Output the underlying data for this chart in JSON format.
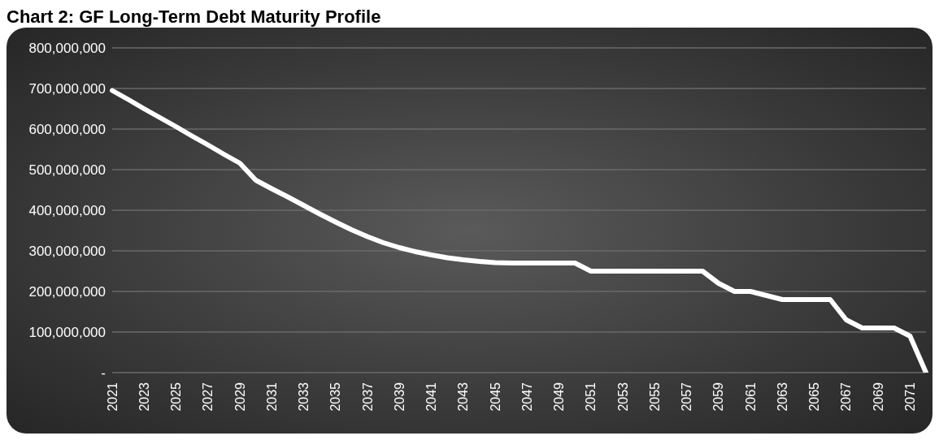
{
  "chart_data": {
    "type": "line",
    "title": "Chart 2: GF Long-Term Debt Maturity Profile",
    "categories": [
      "2021",
      null,
      "2023",
      null,
      "2025",
      null,
      "2027",
      null,
      "2029",
      null,
      "2031",
      null,
      "2033",
      null,
      "2035",
      null,
      "2037",
      null,
      "2039",
      null,
      "2041",
      null,
      "2043",
      null,
      "2045",
      null,
      "2047",
      null,
      "2049",
      null,
      "2051",
      null,
      "2053",
      null,
      "2055",
      null,
      "2057",
      null,
      "2059",
      null,
      "2061",
      null,
      "2063",
      null,
      "2065",
      null,
      "2067",
      null,
      "2069",
      null,
      "2071",
      null
    ],
    "series": [
      {
        "color": "#ffffff",
        "values": [
          695000000,
          673000000,
          650000000,
          628000000,
          606000000,
          583000000,
          561000000,
          538000000,
          516000000,
          474000000,
          453000000,
          433000000,
          412000000,
          391000000,
          371000000,
          352000000,
          335000000,
          320000000,
          308000000,
          298000000,
          290000000,
          283000000,
          278000000,
          274000000,
          271000000,
          270000000,
          270000000,
          270000000,
          270000000,
          270000000,
          250000000,
          250000000,
          250000000,
          250000000,
          250000000,
          250000000,
          250000000,
          250000000,
          220000000,
          200000000,
          200000000,
          190000000,
          180000000,
          180000000,
          180000000,
          180000000,
          130000000,
          110000000,
          110000000,
          110000000,
          90000000,
          0
        ]
      }
    ],
    "ylim": [
      0,
      800000000
    ],
    "yticks": [
      {
        "value": 0,
        "label": "-"
      },
      {
        "value": 100000000,
        "label": "100,000,000"
      },
      {
        "value": 200000000,
        "label": "200,000,000"
      },
      {
        "value": 300000000,
        "label": "300,000,000"
      },
      {
        "value": 400000000,
        "label": "400,000,000"
      },
      {
        "value": 500000000,
        "label": "500,000,000"
      },
      {
        "value": 600000000,
        "label": "600,000,000"
      },
      {
        "value": 700000000,
        "label": "700,000,000"
      },
      {
        "value": 800000000,
        "label": "800,000,000"
      }
    ],
    "grid": "y",
    "legend": false,
    "marker": "none",
    "line_style": "solid"
  }
}
